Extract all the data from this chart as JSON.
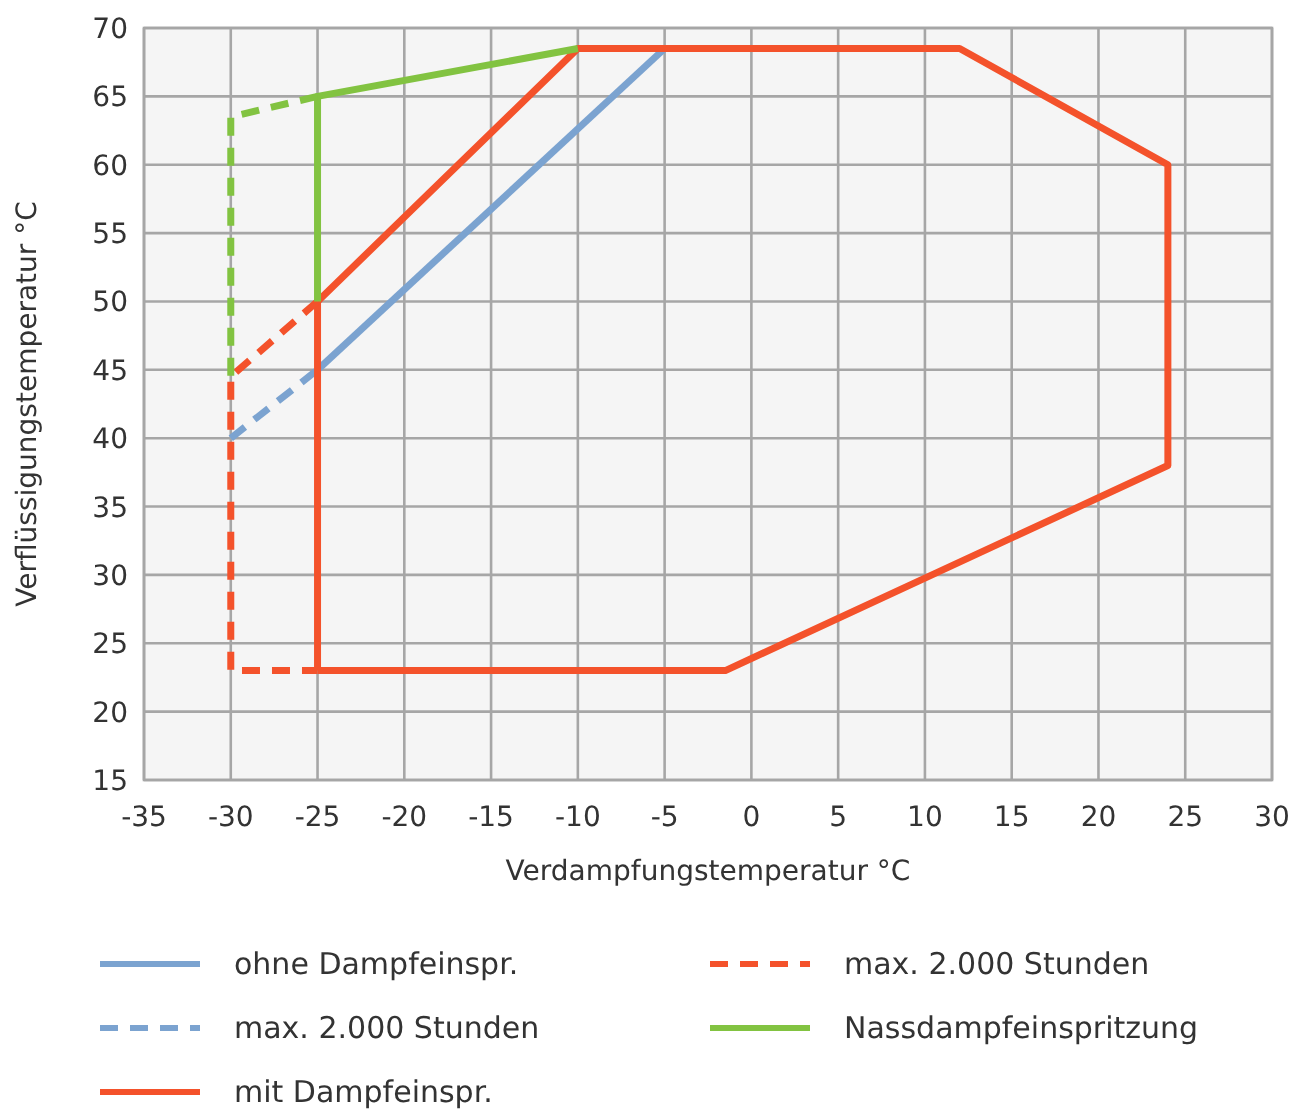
{
  "chart_data": {
    "type": "line",
    "xlabel": "Verdampfungstemperatur °C",
    "ylabel": "Verflüssigungstemperatur °C",
    "xlim": [
      -35,
      30
    ],
    "ylim": [
      15,
      70
    ],
    "xticks": [
      -35,
      -30,
      -25,
      -20,
      -15,
      -10,
      -5,
      0,
      5,
      10,
      15,
      20,
      25,
      30
    ],
    "yticks": [
      15,
      20,
      25,
      30,
      35,
      40,
      45,
      50,
      55,
      60,
      65,
      70
    ],
    "grid": true,
    "legend": "bottom",
    "series": [
      {
        "name": "ohne Dampfeinspr.",
        "color": "#7ba3d0",
        "x": [
          -25,
          -5
        ],
        "values": [
          45,
          68.5
        ]
      },
      {
        "name": "max. 2.000 Stunden",
        "color": "#7ba3d0",
        "line_style": "dashed",
        "x": [
          -30,
          -25
        ],
        "values": [
          40,
          45
        ]
      },
      {
        "name": "mit Dampfeinspr.",
        "color": "#f4522b",
        "x": [
          -25,
          -10,
          12,
          24,
          24,
          -1.5,
          -25
        ],
        "values": [
          50,
          68.5,
          68.5,
          60,
          38,
          23,
          23
        ]
      },
      {
        "color": "#f4522b",
        "x": [
          -25,
          -25
        ],
        "values": [
          23,
          50
        ]
      },
      {
        "name": "max. 2.000 Stunden",
        "color": "#f4522b",
        "line_style": "dashed",
        "x": [
          -25,
          -30,
          -30,
          -25
        ],
        "values": [
          50,
          44.5,
          23,
          23
        ]
      },
      {
        "name": "Nassdampfeinspritzung",
        "color": "#82c341",
        "x": [
          -25,
          -25,
          -10
        ],
        "values": [
          50,
          65,
          68.5
        ]
      },
      {
        "color": "#82c341",
        "line_style": "dashed",
        "x": [
          -25,
          -30,
          -30
        ],
        "values": [
          65,
          63.5,
          44.5
        ]
      }
    ]
  }
}
